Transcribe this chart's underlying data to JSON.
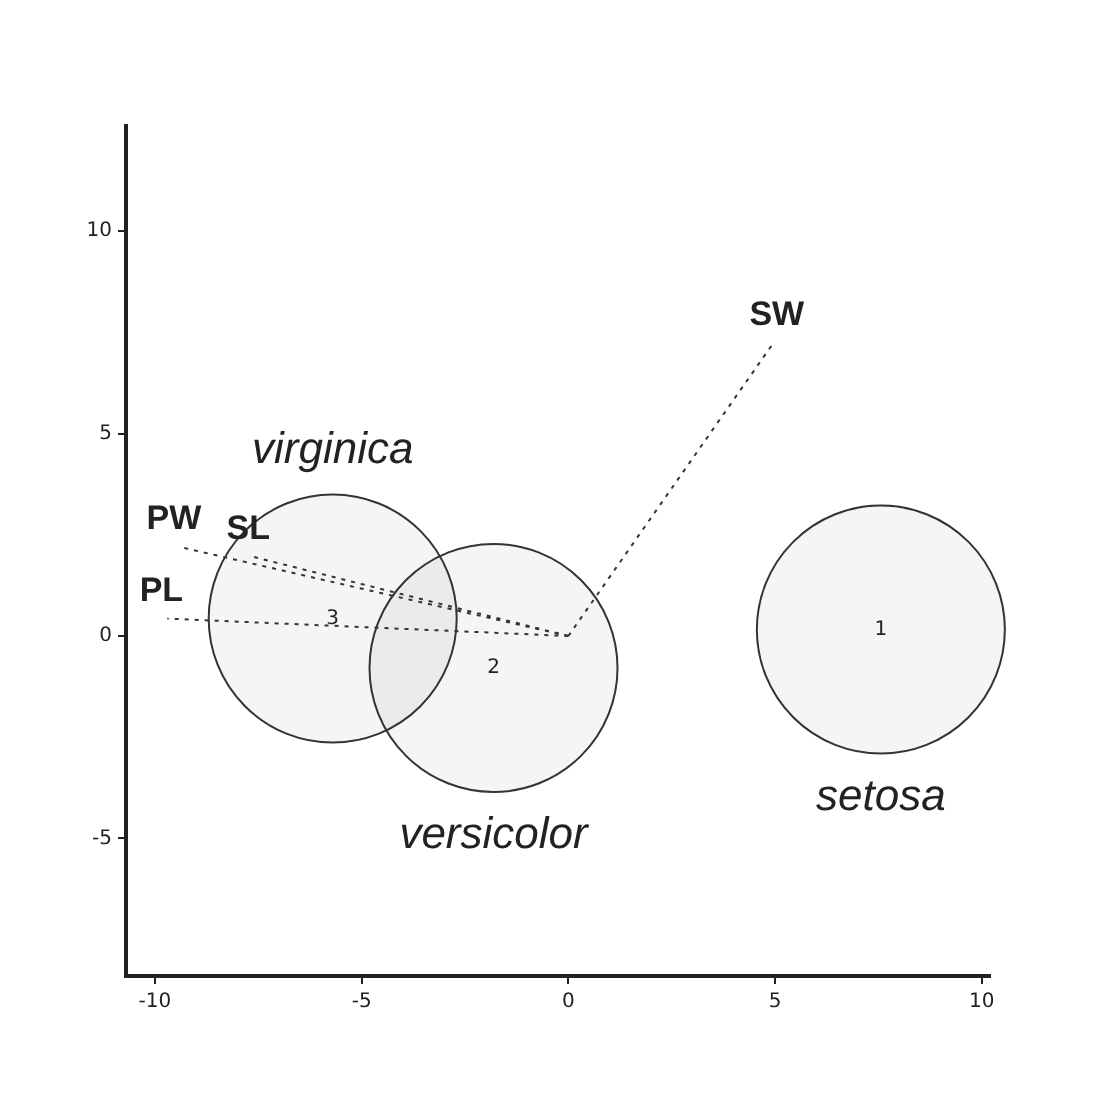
{
  "chart_data": {
    "type": "bubble",
    "xlim": [
      -10.7,
      10.2
    ],
    "ylim": [
      -8.4,
      12.6
    ],
    "xticks": [
      -10,
      -5,
      0,
      5,
      10
    ],
    "yticks": [
      -5,
      0,
      5,
      10
    ],
    "grid": false,
    "legend": false,
    "annotations": [
      {
        "text": "1",
        "x": 7.56,
        "y": 0.16
      },
      {
        "text": "2",
        "x": -1.81,
        "y": -0.79
      },
      {
        "text": "3",
        "x": -5.7,
        "y": 0.43
      }
    ],
    "series": [
      {
        "name": "setosa",
        "color": "#333333",
        "x": [
          7.56
        ],
        "values": [
          0.16
        ],
        "sizes": [
          1
        ]
      },
      {
        "name": "versicolor",
        "color": "#333333",
        "x": [
          -1.81
        ],
        "values": [
          -0.79
        ],
        "sizes": [
          1
        ]
      },
      {
        "name": "virginica",
        "color": "#333333",
        "x": [
          -5.7
        ],
        "values": [
          0.43
        ],
        "sizes": [
          1
        ]
      },
      {
        "name": "SW",
        "type": "line",
        "color": "#333333",
        "x": [
          0,
          4.96
        ],
        "values": [
          0,
          7.24
        ],
        "line_style": "dotted",
        "marker": "none"
      },
      {
        "name": "SL",
        "type": "line",
        "color": "#333333",
        "x": [
          0,
          -7.6
        ],
        "values": [
          0,
          1.95
        ],
        "line_style": "dotted",
        "marker": "none"
      },
      {
        "name": "PW",
        "type": "line",
        "color": "#333333",
        "x": [
          0,
          -9.4
        ],
        "values": [
          0,
          2.2
        ],
        "line_style": "dotted",
        "marker": "none"
      },
      {
        "name": "PL",
        "type": "line",
        "color": "#333333",
        "x": [
          0,
          -9.7
        ],
        "values": [
          0,
          0.43
        ],
        "line_style": "dotted",
        "marker": "none"
      }
    ]
  }
}
